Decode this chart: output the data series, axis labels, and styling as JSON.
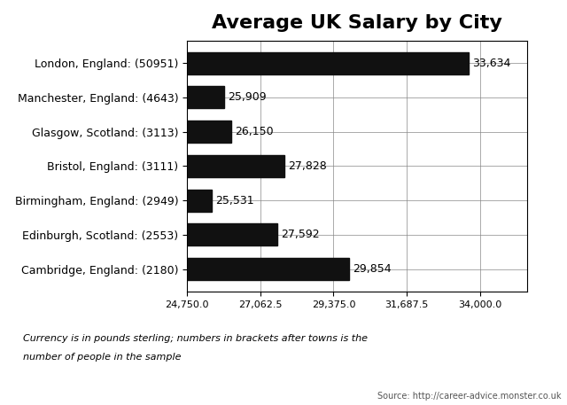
{
  "title": "Average UK Salary by City",
  "categories": [
    "Cambridge, England: (2180)",
    "Edinburgh, Scotland: (2553)",
    "Birmingham, England: (2949)",
    "Bristol, England: (3111)",
    "Glasgow, Scotland: (3113)",
    "Manchester, England: (4643)",
    "London, England: (50951)"
  ],
  "values": [
    29854,
    27592,
    25531,
    27828,
    26150,
    25909,
    33634
  ],
  "bar_color": "#111111",
  "xlim_min": 24750,
  "xlim_max": 35500,
  "xticks": [
    24750.0,
    27062.5,
    29375.0,
    31687.5,
    34000.0
  ],
  "value_labels": [
    "29,854",
    "27,592",
    "25,531",
    "27,828",
    "26,150",
    "25,909",
    "33,634"
  ],
  "footnote_line1": "Currency is in pounds sterling; numbers in brackets after towns is the",
  "footnote_line2": "number of people in the sample",
  "source": "Source: http://career-advice.monster.co.uk",
  "background_color": "#ffffff",
  "title_fontsize": 16,
  "label_fontsize": 9,
  "tick_fontsize": 8,
  "footnote_fontsize": 8,
  "source_fontsize": 7
}
